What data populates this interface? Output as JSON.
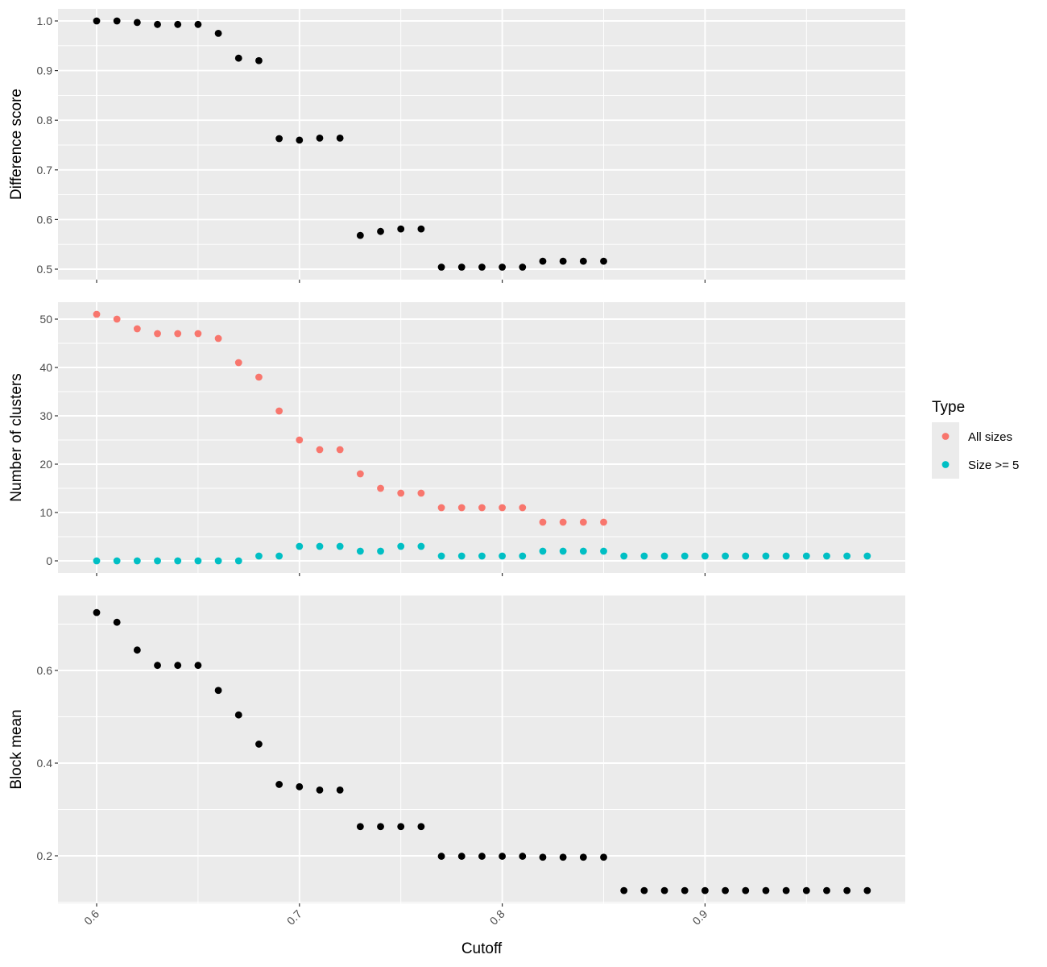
{
  "chart_data": [
    {
      "type": "scatter",
      "title": "",
      "xlabel": "",
      "ylabel": "Difference score",
      "xlim": [
        0.58,
        0.9
      ],
      "ylim": [
        0.48,
        1.025
      ],
      "yticks": [
        "0.5",
        "0.6",
        "0.7",
        "0.8",
        "0.9",
        "1.0"
      ],
      "grid": true,
      "series": [
        {
          "color": "#000000",
          "x": [
            0.6,
            0.61,
            0.62,
            0.63,
            0.64,
            0.65,
            0.66,
            0.67,
            0.68,
            0.69,
            0.7,
            0.71,
            0.72,
            0.73,
            0.74,
            0.75,
            0.76,
            0.77,
            0.78,
            0.79,
            0.8,
            0.81,
            0.82,
            0.83,
            0.84,
            0.85
          ],
          "y": [
            1.0,
            1.0,
            0.997,
            0.993,
            0.993,
            0.993,
            0.975,
            0.925,
            0.92,
            0.763,
            0.76,
            0.764,
            0.764,
            0.568,
            0.576,
            0.581,
            0.581,
            0.504,
            0.504,
            0.504,
            0.504,
            0.504,
            0.516,
            0.516,
            0.516,
            0.516
          ]
        }
      ]
    },
    {
      "type": "scatter",
      "title": "",
      "xlabel": "",
      "ylabel": "Number of clusters",
      "xlim": [
        0.58,
        1.0
      ],
      "ylim": [
        -2.5,
        53.5
      ],
      "yticks": [
        "0",
        "10",
        "20",
        "30",
        "40",
        "50"
      ],
      "grid": true,
      "legend": {
        "title": "Type",
        "position": "right"
      },
      "series": [
        {
          "name": "All sizes",
          "color": "#f8766d",
          "x": [
            0.6,
            0.61,
            0.62,
            0.63,
            0.64,
            0.65,
            0.66,
            0.67,
            0.68,
            0.69,
            0.7,
            0.71,
            0.72,
            0.73,
            0.74,
            0.75,
            0.76,
            0.77,
            0.78,
            0.79,
            0.8,
            0.81,
            0.82,
            0.83,
            0.84,
            0.85
          ],
          "y": [
            51,
            50,
            48,
            47,
            47,
            47,
            46,
            41,
            38,
            31,
            25,
            23,
            23,
            18,
            15,
            14,
            14,
            11,
            11,
            11,
            11,
            11,
            8,
            8,
            8,
            8
          ]
        },
        {
          "name": "Size >= 5",
          "color": "#00bfc4",
          "x": [
            0.6,
            0.61,
            0.62,
            0.63,
            0.64,
            0.65,
            0.66,
            0.67,
            0.68,
            0.69,
            0.7,
            0.71,
            0.72,
            0.73,
            0.74,
            0.75,
            0.76,
            0.77,
            0.78,
            0.79,
            0.8,
            0.81,
            0.82,
            0.83,
            0.84,
            0.85,
            0.86,
            0.87,
            0.88,
            0.89,
            0.9,
            0.91,
            0.92,
            0.93,
            0.94,
            0.95,
            0.96,
            0.97,
            0.98
          ],
          "y": [
            0,
            0,
            0,
            0,
            0,
            0,
            0,
            0,
            1,
            1,
            3,
            3,
            3,
            2,
            2,
            3,
            3,
            1,
            1,
            1,
            1,
            1,
            2,
            2,
            2,
            2,
            1,
            1,
            1,
            1,
            1,
            1,
            1,
            1,
            1,
            1,
            1,
            1,
            1
          ]
        }
      ]
    },
    {
      "type": "scatter",
      "title": "",
      "xlabel": "Cutoff",
      "ylabel": "Block mean",
      "xlim": [
        0.58,
        1.0
      ],
      "ylim": [
        0.1,
        0.74
      ],
      "xticks": [
        "0.6",
        "0.7",
        "0.8",
        "0.9"
      ],
      "yticks": [
        "0.2",
        "0.4",
        "0.6"
      ],
      "grid": true,
      "series": [
        {
          "color": "#000000",
          "x": [
            0.6,
            0.61,
            0.62,
            0.63,
            0.64,
            0.65,
            0.66,
            0.67,
            0.68,
            0.69,
            0.7,
            0.71,
            0.72,
            0.73,
            0.74,
            0.75,
            0.76,
            0.77,
            0.78,
            0.79,
            0.8,
            0.81,
            0.82,
            0.83,
            0.84,
            0.85,
            0.86,
            0.87,
            0.88,
            0.89,
            0.9,
            0.91,
            0.92,
            0.93,
            0.94,
            0.95,
            0.96,
            0.97,
            0.98
          ],
          "y": [
            0.725,
            0.704,
            0.644,
            0.611,
            0.611,
            0.611,
            0.557,
            0.504,
            0.441,
            0.354,
            0.349,
            0.342,
            0.342,
            0.263,
            0.263,
            0.263,
            0.263,
            0.199,
            0.199,
            0.199,
            0.199,
            0.199,
            0.197,
            0.197,
            0.197,
            0.197,
            0.125,
            0.125,
            0.125,
            0.125,
            0.125,
            0.125,
            0.125,
            0.125,
            0.125,
            0.125,
            0.125,
            0.125,
            0.125
          ]
        }
      ]
    }
  ]
}
